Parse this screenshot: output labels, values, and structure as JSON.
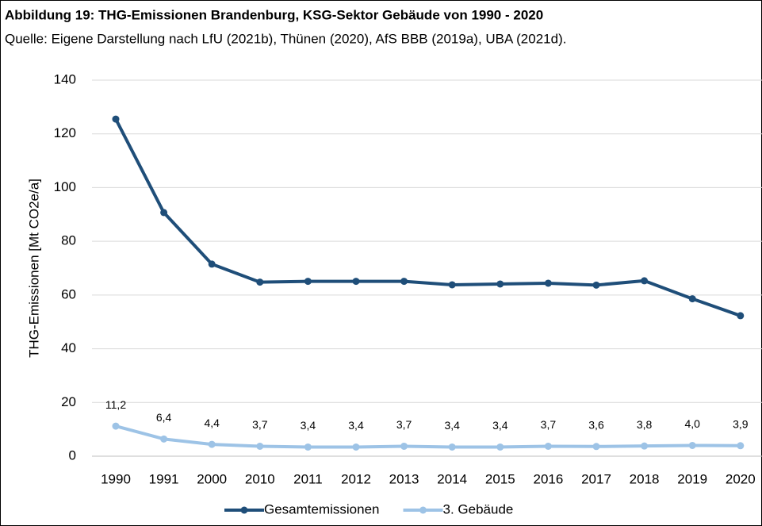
{
  "chart_data": {
    "type": "line",
    "title": "Abbildung 19: THG-Emissionen Brandenburg, KSG-Sektor Gebäude von 1990 - 2020",
    "subtitle": "Quelle: Eigene Darstellung nach LfU (2021b), Thünen (2020), AfS BBB (2019a), UBA (2021d).",
    "ylabel": "THG-Emissionen [Mt CO2e/a]",
    "categories": [
      "1990",
      "1991",
      "2000",
      "2010",
      "2011",
      "2012",
      "2013",
      "2014",
      "2015",
      "2016",
      "2017",
      "2018",
      "2019",
      "2020"
    ],
    "series": [
      {
        "name": "Gesamtemissionen",
        "color": "#1f4e79",
        "values": [
          125.5,
          90.7,
          71.5,
          64.8,
          65.1,
          65.1,
          65.1,
          63.8,
          64.1,
          64.4,
          63.7,
          65.3,
          58.6,
          52.3
        ]
      },
      {
        "name": "3. Gebäude",
        "color": "#9dc3e6",
        "values": [
          11.2,
          6.4,
          4.4,
          3.7,
          3.4,
          3.4,
          3.7,
          3.4,
          3.4,
          3.7,
          3.6,
          3.8,
          4.0,
          3.9
        ],
        "value_labels": [
          "11,2",
          "6,4",
          "4,4",
          "3,7",
          "3,4",
          "3,4",
          "3,7",
          "3,4",
          "3,4",
          "3,7",
          "3,6",
          "3,8",
          "4,0",
          "3,9"
        ]
      }
    ],
    "ylim": [
      0,
      140
    ],
    "yticks": [
      0,
      20,
      40,
      60,
      80,
      100,
      120,
      140
    ],
    "grid": true,
    "legend": "bottom"
  }
}
